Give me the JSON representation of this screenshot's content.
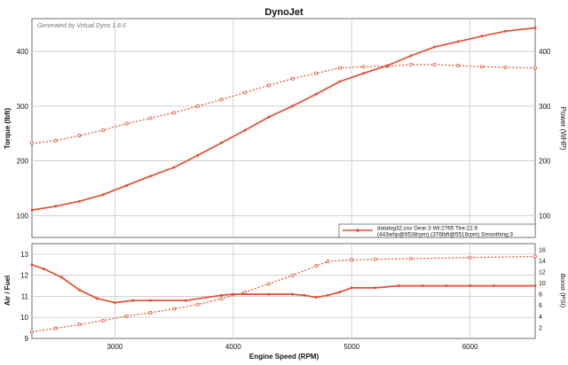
{
  "chart_data": [
    {
      "type": "line",
      "title": "DynoJet",
      "watermark": "Generated by Virtual Dyno 1.8.6",
      "ylabel": "Torque (lbft)",
      "y2label": "Power (WHP)",
      "xlim": [
        2300,
        6550
      ],
      "ylim": [
        60,
        460
      ],
      "y2lim": [
        60,
        460
      ],
      "yticks": [
        100,
        200,
        300,
        400
      ],
      "y2ticks": [
        100,
        200,
        300,
        400
      ],
      "series": [
        {
          "role": "power",
          "axis": "y2",
          "style": "solid",
          "x": [
            2300,
            2500,
            2700,
            2900,
            3100,
            3300,
            3500,
            3700,
            3900,
            4100,
            4300,
            4500,
            4700,
            4900,
            5100,
            5300,
            5500,
            5700,
            5900,
            6100,
            6300,
            6550
          ],
          "values": [
            110,
            117,
            126,
            138,
            155,
            172,
            188,
            210,
            233,
            256,
            280,
            300,
            322,
            345,
            360,
            374,
            392,
            408,
            418,
            428,
            437,
            443
          ]
        },
        {
          "role": "torque",
          "axis": "y",
          "style": "dotted",
          "x": [
            2300,
            2500,
            2700,
            2900,
            3100,
            3300,
            3500,
            3700,
            3900,
            4100,
            4300,
            4500,
            4700,
            4900,
            5100,
            5300,
            5500,
            5700,
            5900,
            6100,
            6300,
            6550
          ],
          "values": [
            232,
            237,
            246,
            256,
            268,
            278,
            288,
            300,
            312,
            325,
            338,
            350,
            360,
            370,
            372,
            373,
            376,
            376,
            374,
            372,
            371,
            370
          ]
        }
      ],
      "legend": {
        "placement": "bottom-right",
        "line1": "datalog32.csv Gear:3 Wt:2765 Tire:22.9",
        "line2": "(443whp@6538rpm) (376lbft@5516rpm) Smoothing:3"
      },
      "grid": true
    },
    {
      "type": "line",
      "xlabel": "Engine Speed (RPM)",
      "ylabel": "Air / Fuel",
      "y2label": "Boost (PSI)",
      "xlim": [
        2300,
        6550
      ],
      "xticks": [
        3000,
        4000,
        5000,
        6000
      ],
      "ylim": [
        9,
        13.5
      ],
      "yticks": [
        9,
        10,
        11,
        12,
        13
      ],
      "y2lim": [
        0,
        17
      ],
      "y2ticks": [
        2,
        4,
        6,
        8,
        10,
        12,
        14,
        16
      ],
      "series": [
        {
          "role": "air-fuel",
          "axis": "y",
          "style": "solid",
          "x": [
            2300,
            2400,
            2550,
            2700,
            2850,
            3000,
            3150,
            3300,
            3600,
            3900,
            4000,
            4300,
            4500,
            4600,
            4700,
            4800,
            4900,
            5000,
            5200,
            5400,
            5600,
            5800,
            6000,
            6200,
            6550
          ],
          "values": [
            12.5,
            12.3,
            11.9,
            11.3,
            10.9,
            10.7,
            10.8,
            10.8,
            10.8,
            11.05,
            11.1,
            11.1,
            11.1,
            11.05,
            10.95,
            11.05,
            11.2,
            11.4,
            11.4,
            11.5,
            11.5,
            11.5,
            11.5,
            11.5,
            11.5
          ]
        },
        {
          "role": "boost",
          "axis": "y2",
          "style": "dotted",
          "x": [
            2300,
            2500,
            2700,
            2900,
            3100,
            3300,
            3500,
            3700,
            3900,
            4100,
            4300,
            4500,
            4700,
            4800,
            5000,
            5200,
            5500,
            6000,
            6550
          ],
          "values": [
            1.2,
            1.8,
            2.5,
            3.2,
            4.0,
            4.6,
            5.3,
            6.1,
            7.1,
            8.3,
            9.8,
            11.3,
            13.0,
            13.8,
            14.1,
            14.2,
            14.3,
            14.5,
            14.7
          ]
        }
      ],
      "grid": true
    }
  ],
  "colors": {
    "line": "#e05030",
    "grid": "#c9c9c9",
    "frame": "#6e6e6e",
    "text": "#111111"
  }
}
